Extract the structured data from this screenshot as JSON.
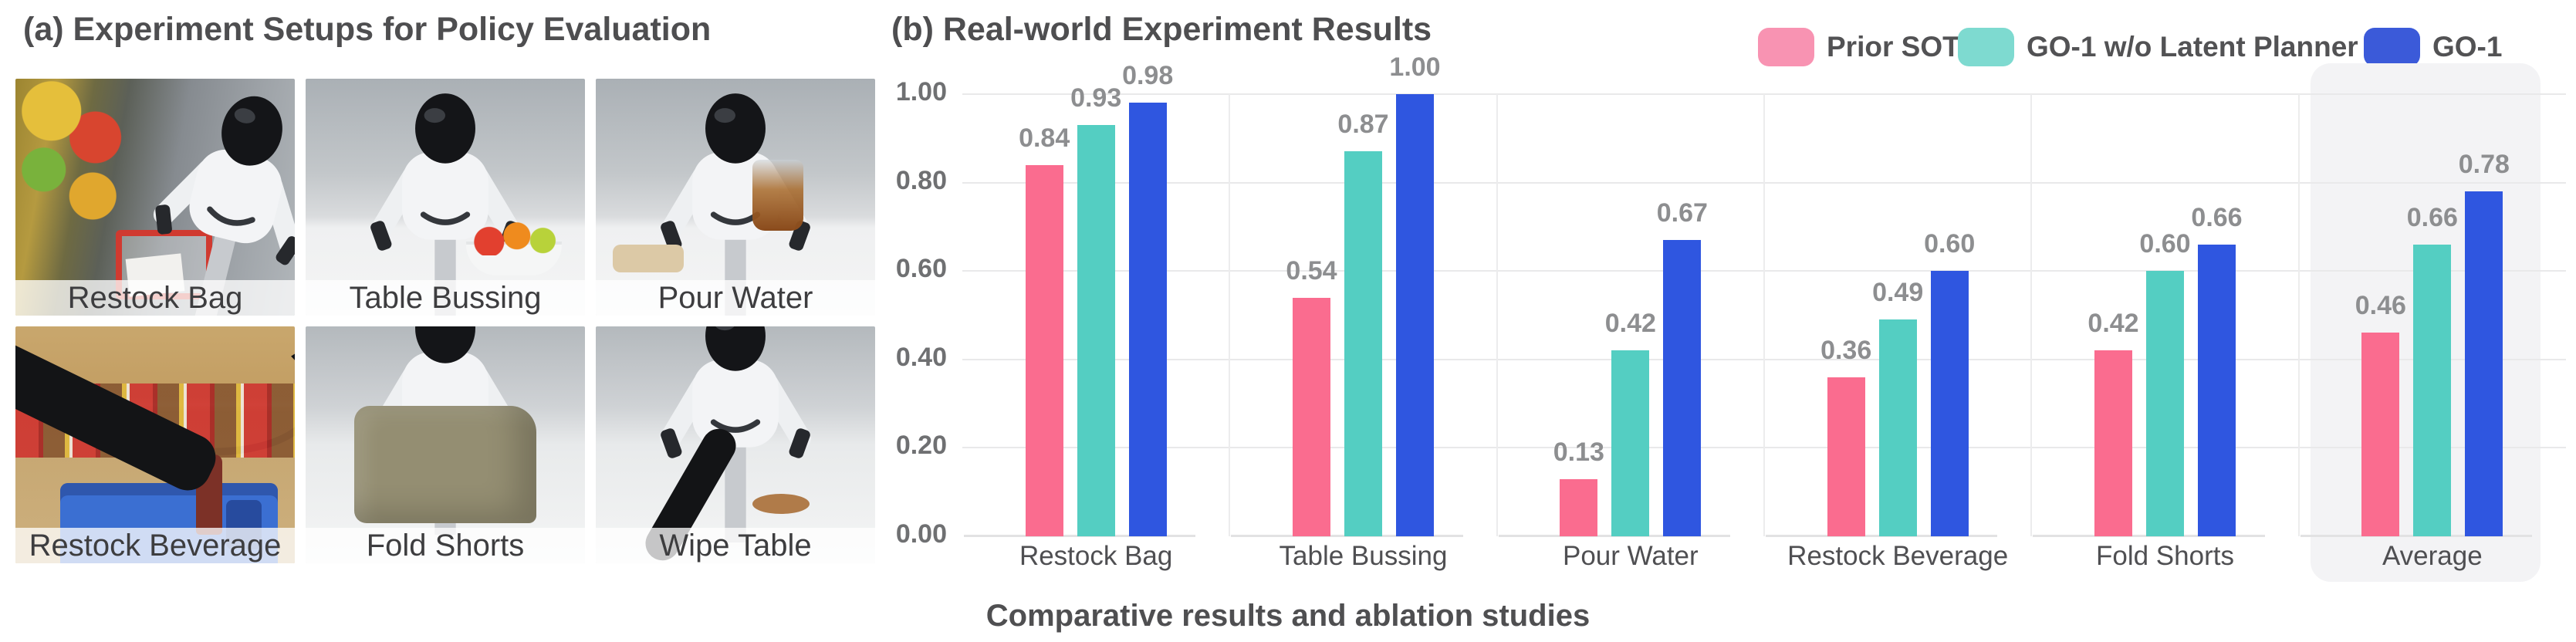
{
  "panel_a": {
    "title": "(a) Experiment Setups for Policy Evaluation",
    "photos": [
      {
        "label": "Restock Bag"
      },
      {
        "label": "Table Bussing"
      },
      {
        "label": "Pour Water"
      },
      {
        "label": "Restock Beverage"
      },
      {
        "label": "Fold Shorts"
      },
      {
        "label": "Wipe Table"
      }
    ]
  },
  "panel_b": {
    "title": "(b) Real-world Experiment Results"
  },
  "caption": "Comparative results and ablation studies",
  "chart_data": {
    "type": "bar",
    "title": "(b) Real-world Experiment Results",
    "categories": [
      "Restock Bag",
      "Table Bussing",
      "Pour Water",
      "Restock Beverage",
      "Fold Shorts",
      "Average"
    ],
    "series": [
      {
        "name": "Prior SOTA",
        "color": "#FA6C8F",
        "legend_color": "#F893B2",
        "values": [
          0.84,
          0.54,
          0.13,
          0.36,
          0.42,
          0.46
        ]
      },
      {
        "name": "GO-1 w/o Latent Planner",
        "color": "#54CEC2",
        "legend_color": "#7EDAD0",
        "values": [
          0.93,
          0.87,
          0.42,
          0.49,
          0.6,
          0.66
        ]
      },
      {
        "name": "GO-1",
        "color": "#2F56E0",
        "legend_color": "#3B5AD9",
        "values": [
          0.98,
          1.0,
          0.67,
          0.6,
          0.66,
          0.78
        ]
      }
    ],
    "ylim": [
      0,
      1.0
    ],
    "yticks": [
      0,
      0.2,
      0.4,
      0.6,
      0.8,
      1.0
    ],
    "ytick_labels": [
      "0.00",
      "0.20",
      "0.40",
      "0.60",
      "0.80",
      "1.00"
    ],
    "value_label_format": "2dp",
    "grid": true,
    "legend_position": "top-right",
    "highlighted_category": "Average",
    "highlight_color": "#F3F3F5",
    "gridline_color": "#E9E9EA",
    "text_color": "#4f4f52"
  }
}
